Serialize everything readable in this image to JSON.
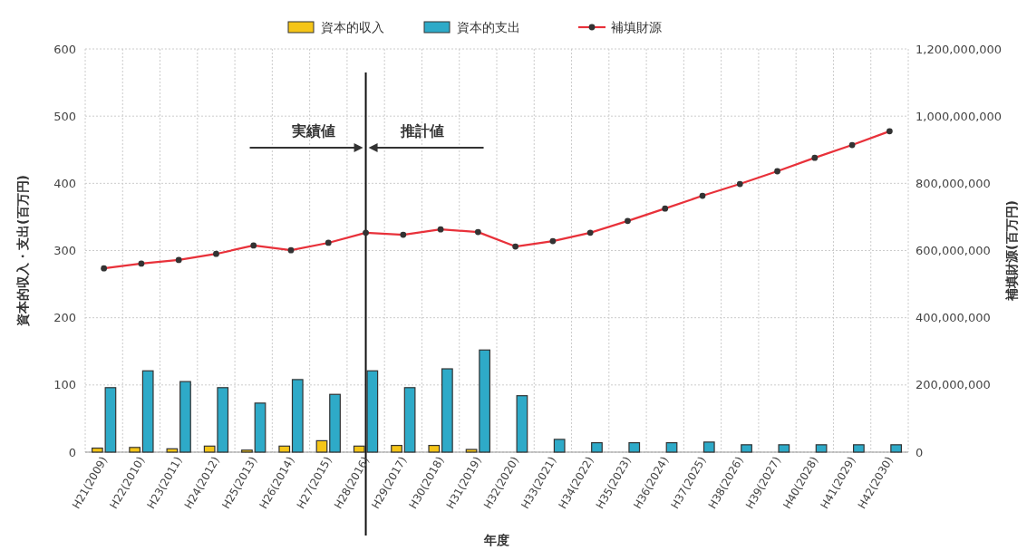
{
  "chart_data": {
    "type": "bar",
    "xlabel": "年度",
    "ylabel": "資本的収入・支出(百万円)",
    "y2label": "補填財源(百万円)",
    "categories": [
      "H21(2009)",
      "H22(2010)",
      "H23(2011)",
      "H24(2012)",
      "H25(2013)",
      "H26(2014)",
      "H27(2015)",
      "H28(2016)",
      "H29(2017)",
      "H30(2018)",
      "H31(2019)",
      "H32(2020)",
      "H33(2021)",
      "H34(2022)",
      "H35(2023)",
      "H36(2024)",
      "H37(2025)",
      "H38(2026)",
      "H39(2027)",
      "H40(2028)",
      "H41(2029)",
      "H42(2030)"
    ],
    "series": [
      {
        "name": "資本的収入",
        "color": "#f5c518",
        "values": [
          6,
          7,
          5,
          9,
          3,
          9,
          17,
          9,
          10,
          10,
          4,
          null,
          null,
          null,
          null,
          null,
          null,
          null,
          null,
          null,
          null,
          null
        ]
      },
      {
        "name": "資本的支出",
        "color": "#2eaac8",
        "values": [
          96,
          121,
          105,
          96,
          73,
          108,
          86,
          121,
          96,
          124,
          152,
          84,
          19,
          14,
          14,
          14,
          15,
          11,
          11,
          11,
          11,
          11
        ]
      },
      {
        "name": "補填財源",
        "type": "line",
        "axis": "y2",
        "color": "#e8313a",
        "marker": "circle",
        "values": [
          547000000,
          561000000,
          572000000,
          590000000,
          615000000,
          601000000,
          623000000,
          653000000,
          647000000,
          663000000,
          655000000,
          612000000,
          628000000,
          653000000,
          688000000,
          725000000,
          763000000,
          798000000,
          836000000,
          876000000,
          914000000,
          955000000
        ]
      }
    ],
    "ylim": [
      0,
      600
    ],
    "yticks": [
      0,
      100,
      200,
      300,
      400,
      500,
      600
    ],
    "y2lim": [
      0,
      1200000000
    ],
    "y2ticks": [
      {
        "value": 0,
        "label": "0"
      },
      {
        "value": 200000000,
        "label": "200,000,000"
      },
      {
        "value": 400000000,
        "label": "400,000,000"
      },
      {
        "value": 600000000,
        "label": "600,000,000"
      },
      {
        "value": 800000000,
        "label": "800,000,000"
      },
      {
        "value": 1000000000,
        "label": "1,000,000,000"
      },
      {
        "value": 1200000000,
        "label": "1,200,000,000"
      }
    ],
    "ref_lines": [
      {
        "axis": "x",
        "value": "H28(2016)",
        "color": "#111111"
      }
    ],
    "annotations": [
      "実績値",
      "推計値"
    ],
    "grid": true,
    "legend": "top"
  }
}
